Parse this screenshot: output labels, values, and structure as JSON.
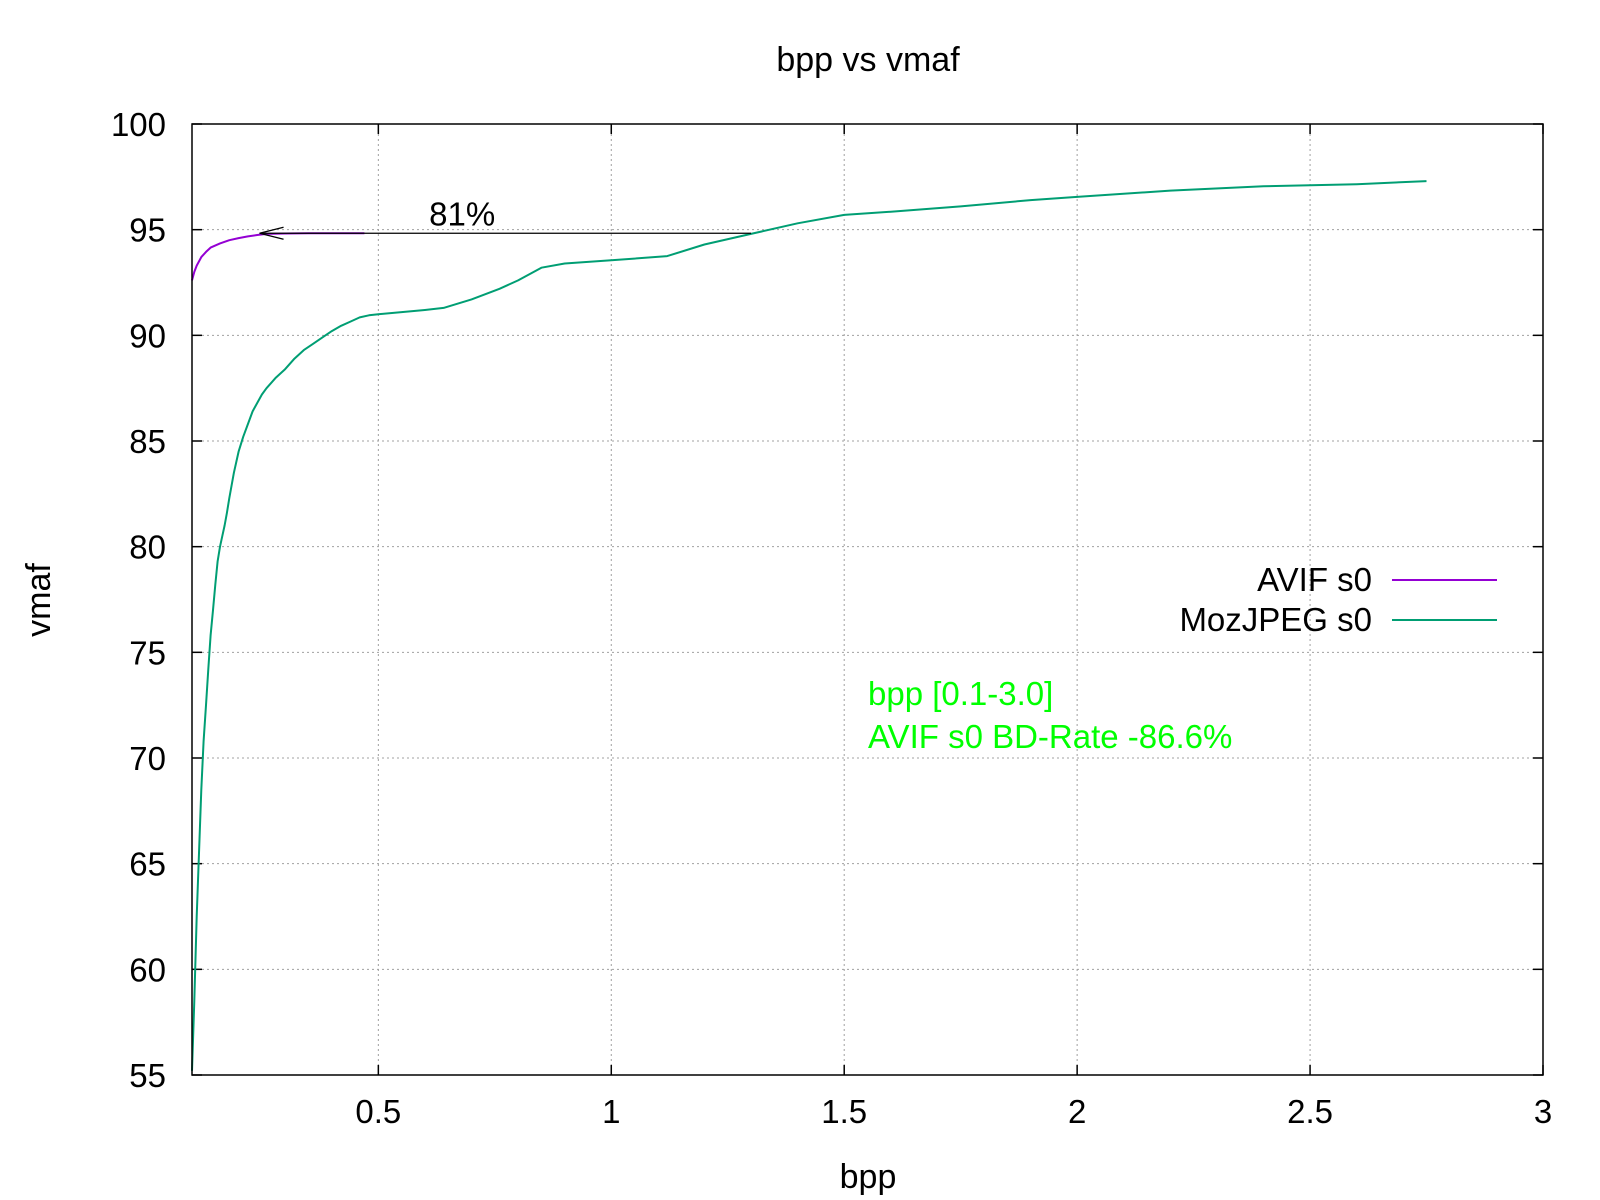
{
  "chart_data": {
    "type": "line",
    "title": "bpp vs vmaf",
    "xlabel": "bpp",
    "ylabel": "vmaf",
    "xlim": [
      0.1,
      3.0
    ],
    "ylim": [
      55,
      100
    ],
    "x_ticks": [
      0.5,
      1,
      1.5,
      2,
      2.5,
      3
    ],
    "x_tick_labels": [
      "0.5",
      "1",
      "1.5",
      "2",
      "2.5",
      "3"
    ],
    "y_ticks": [
      55,
      60,
      65,
      70,
      75,
      80,
      85,
      90,
      95,
      100
    ],
    "y_tick_labels": [
      "55",
      "60",
      "65",
      "70",
      "75",
      "80",
      "85",
      "90",
      "95",
      "100"
    ],
    "grid": true,
    "legend_position": "right",
    "series": [
      {
        "name": "AVIF s0",
        "color": "#9400d3",
        "x": [
          0.1,
          0.105,
          0.11,
          0.12,
          0.13,
          0.14,
          0.16,
          0.18,
          0.2,
          0.22,
          0.24,
          0.26,
          0.3,
          0.35,
          0.4,
          0.47
        ],
        "y": [
          92.6,
          93.0,
          93.3,
          93.7,
          93.95,
          94.15,
          94.35,
          94.5,
          94.6,
          94.68,
          94.75,
          94.8,
          94.82,
          94.83,
          94.83,
          94.83
        ]
      },
      {
        "name": "MozJPEG s0",
        "color": "#009e73",
        "x": [
          0.1,
          0.105,
          0.11,
          0.115,
          0.12,
          0.125,
          0.13,
          0.135,
          0.14,
          0.145,
          0.15,
          0.155,
          0.16,
          0.165,
          0.17,
          0.175,
          0.18,
          0.19,
          0.2,
          0.21,
          0.22,
          0.23,
          0.24,
          0.25,
          0.26,
          0.28,
          0.3,
          0.32,
          0.34,
          0.36,
          0.38,
          0.4,
          0.42,
          0.44,
          0.46,
          0.48,
          0.5,
          0.55,
          0.6,
          0.64,
          0.7,
          0.76,
          0.8,
          0.85,
          0.9,
          1.0,
          1.12,
          1.2,
          1.3,
          1.4,
          1.5,
          1.6,
          1.75,
          1.9,
          2.0,
          2.2,
          2.4,
          2.6,
          2.75
        ],
        "y": [
          55.2,
          58.5,
          62.5,
          65.5,
          68.5,
          70.8,
          72.5,
          74.2,
          75.8,
          77.0,
          78.2,
          79.3,
          80.0,
          80.5,
          81.0,
          81.6,
          82.3,
          83.5,
          84.5,
          85.2,
          85.8,
          86.4,
          86.8,
          87.2,
          87.5,
          88.0,
          88.4,
          88.9,
          89.3,
          89.6,
          89.9,
          90.2,
          90.45,
          90.65,
          90.85,
          90.95,
          91.0,
          91.1,
          91.2,
          91.3,
          91.7,
          92.2,
          92.6,
          93.2,
          93.4,
          93.55,
          93.75,
          94.3,
          94.8,
          95.3,
          95.7,
          95.85,
          96.1,
          96.4,
          96.55,
          96.85,
          97.05,
          97.15,
          97.3
        ]
      }
    ],
    "annotations": [
      {
        "type": "arrow",
        "from": [
          1.3,
          94.83
        ],
        "to": [
          0.245,
          94.83
        ],
        "label": "81%",
        "label_at": [
          0.68,
          95.2
        ]
      }
    ],
    "notes": {
      "line1": "bpp [0.1-3.0]",
      "line2": "AVIF s0 BD-Rate -86.6%",
      "color": "#00ff00"
    }
  }
}
